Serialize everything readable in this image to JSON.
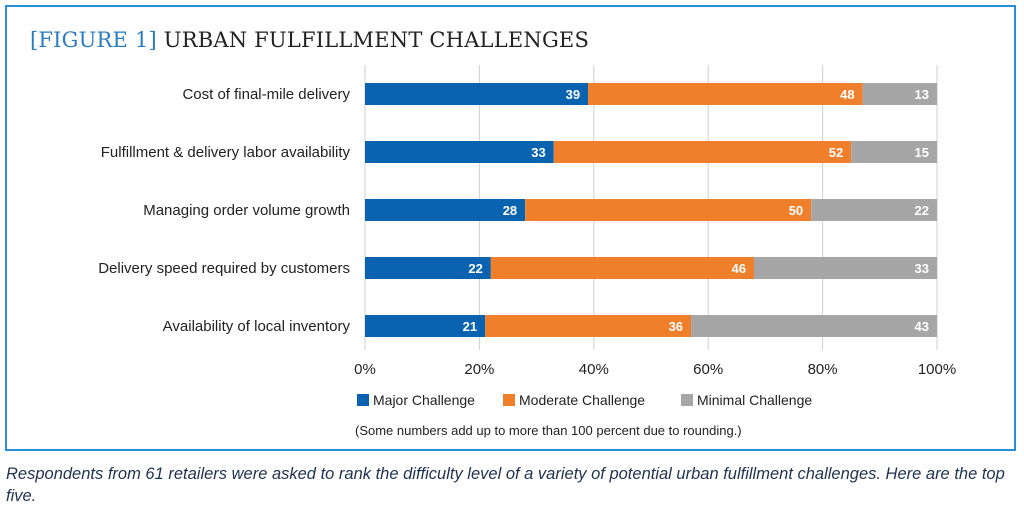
{
  "chart_data": {
    "type": "bar",
    "orientation": "horizontal",
    "stacked": true,
    "title_prefix": "[FIGURE 1]",
    "title": "URBAN FULFILLMENT CHALLENGES",
    "categories": [
      "Cost of final-mile delivery",
      "Fulfillment & delivery labor availability",
      "Managing order volume growth",
      "Delivery speed required by customers",
      "Availability of local inventory"
    ],
    "series": [
      {
        "name": "Major Challenge",
        "color": "#0a63b0",
        "values": [
          39,
          33,
          28,
          22,
          21
        ]
      },
      {
        "name": "Moderate Challenge",
        "color": "#f07f2c",
        "values": [
          48,
          52,
          50,
          46,
          36
        ]
      },
      {
        "name": "Minimal Challenge",
        "color": "#a6a6a6",
        "values": [
          13,
          15,
          22,
          33,
          43
        ]
      }
    ],
    "xlim": [
      0,
      100
    ],
    "xticks": [
      "0%",
      "20%",
      "40%",
      "60%",
      "80%",
      "100%"
    ],
    "grid": true,
    "legend_placement": "bottom",
    "note": "(Some numbers add up to more than 100 percent due to rounding.)"
  },
  "caption": "Respondents from 61 retailers were asked to rank the difficulty level of a variety of potential urban fulfillment challenges. Here are the top five."
}
